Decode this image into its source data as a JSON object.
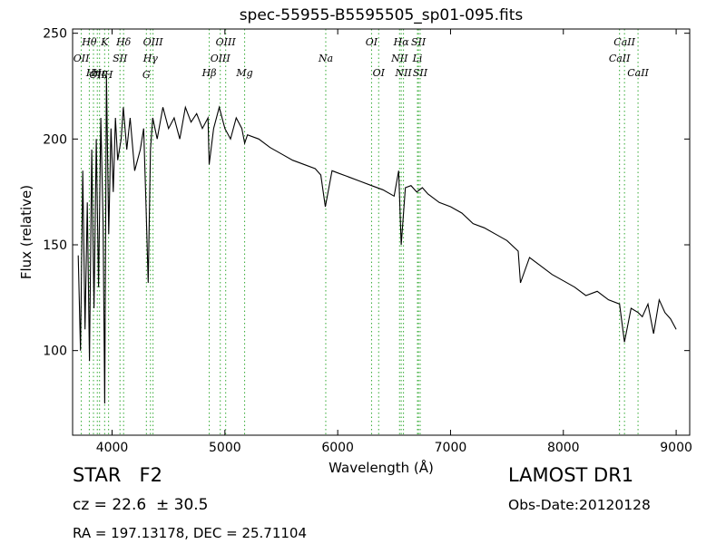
{
  "chart_data": {
    "type": "line",
    "title": "spec-55955-B5595505_sp01-095.fits",
    "xlabel": "Wavelength (Å)",
    "ylabel": "Flux (relative)",
    "xlim": [
      3650,
      9120
    ],
    "ylim": [
      60,
      252
    ],
    "xticks": [
      4000,
      5000,
      6000,
      7000,
      8000,
      9000
    ],
    "yticks": [
      100,
      150,
      200,
      250
    ],
    "grid": false,
    "line_color": "#000000",
    "line_marker_color": "#33aa33",
    "series": [
      {
        "x": [
          3700,
          3720,
          3740,
          3760,
          3780,
          3800,
          3820,
          3840,
          3860,
          3880,
          3900,
          3920,
          3935,
          3950,
          3970,
          3990,
          4010,
          4030,
          4050,
          4080,
          4100,
          4130,
          4160,
          4200,
          4250,
          4280,
          4300,
          4320,
          4340,
          4360,
          4400,
          4450,
          4500,
          4550,
          4600,
          4650,
          4700,
          4750,
          4800,
          4850,
          4861,
          4900,
          4950,
          5000,
          5050,
          5100,
          5150,
          5175,
          5200,
          5300,
          5400,
          5500,
          5600,
          5700,
          5800,
          5850,
          5890,
          5950,
          6000,
          6100,
          6200,
          6300,
          6400,
          6500,
          6540,
          6563,
          6600,
          6650,
          6700,
          6750,
          6800,
          6900,
          7000,
          7100,
          7200,
          7300,
          7400,
          7500,
          7600,
          7620,
          7700,
          7800,
          7900,
          8000,
          8100,
          8200,
          8300,
          8400,
          8498,
          8542,
          8600,
          8662,
          8700,
          8750,
          8800,
          8850,
          8900,
          8950,
          9000
        ],
        "y": [
          145,
          100,
          185,
          110,
          170,
          95,
          195,
          120,
          200,
          130,
          210,
          160,
          75,
          230,
          155,
          205,
          175,
          210,
          190,
          200,
          215,
          195,
          210,
          185,
          195,
          205,
          170,
          132,
          195,
          210,
          200,
          215,
          205,
          210,
          200,
          215,
          208,
          212,
          205,
          210,
          188,
          205,
          215,
          205,
          200,
          210,
          205,
          198,
          202,
          200,
          196,
          193,
          190,
          188,
          186,
          183,
          168,
          185,
          184,
          182,
          180,
          178,
          176,
          173,
          185,
          150,
          177,
          178,
          175,
          177,
          174,
          170,
          168,
          165,
          160,
          158,
          155,
          152,
          147,
          132,
          144,
          140,
          136,
          133,
          130,
          126,
          128,
          124,
          122,
          104,
          120,
          118,
          116,
          122,
          108,
          124,
          118,
          115,
          110
        ]
      }
    ],
    "line_markers": [
      {
        "label": "OII",
        "wl": 3727,
        "row": 2
      },
      {
        "label": "Hθ",
        "wl": 3798,
        "row": 1
      },
      {
        "label": "Hη",
        "wl": 3835,
        "row": 3
      },
      {
        "label": "OII",
        "wl": 3869,
        "row": 4
      },
      {
        "label": "K",
        "wl": 3934,
        "row": 1
      },
      {
        "label": "Hε",
        "wl": 3889,
        "row": 3
      },
      {
        "label": "H",
        "wl": 3969,
        "row": 4
      },
      {
        "label": "SII",
        "wl": 4070,
        "row": 2
      },
      {
        "label": "Hδ",
        "wl": 4102,
        "row": 1
      },
      {
        "label": "G",
        "wl": 4304,
        "row": 4
      },
      {
        "label": "Hγ",
        "wl": 4340,
        "row": 2
      },
      {
        "label": "OIII",
        "wl": 4363,
        "row": 1
      },
      {
        "label": "Hβ",
        "wl": 4861,
        "row": 3
      },
      {
        "label": "OIII",
        "wl": 4959,
        "row": 2
      },
      {
        "label": "OIII",
        "wl": 5007,
        "row": 1
      },
      {
        "label": "Mg",
        "wl": 5175,
        "row": 3
      },
      {
        "label": "Na",
        "wl": 5894,
        "row": 2
      },
      {
        "label": "OI",
        "wl": 6300,
        "row": 1
      },
      {
        "label": "OI",
        "wl": 6363,
        "row": 3
      },
      {
        "label": "NII",
        "wl": 6548,
        "row": 2
      },
      {
        "label": "Hα",
        "wl": 6563,
        "row": 1
      },
      {
        "label": "NII",
        "wl": 6583,
        "row": 3
      },
      {
        "label": "SII",
        "wl": 6716,
        "row": 1
      },
      {
        "label": "Li",
        "wl": 6707,
        "row": 2
      },
      {
        "label": "SII",
        "wl": 6731,
        "row": 3
      },
      {
        "label": "CaII",
        "wl": 8498,
        "row": 2
      },
      {
        "label": "CaII",
        "wl": 8542,
        "row": 1
      },
      {
        "label": "CaII",
        "wl": 8662,
        "row": 3
      }
    ]
  },
  "info": {
    "class_line": "STAR   F2",
    "cz_line": "cz = 22.6  ± 30.5",
    "radec_line": "RA = 197.13178, DEC = 25.71104",
    "survey": "LAMOST DR1",
    "obs_date": "Obs-Date:20120128"
  }
}
